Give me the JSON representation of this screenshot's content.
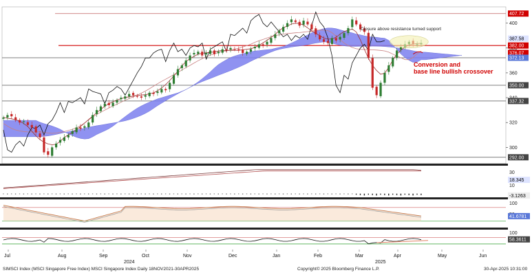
{
  "chart_data": {
    "type": "line",
    "main_panel": {
      "ylim": [
        288,
        412
      ],
      "yticks": [
        "400",
        "380",
        "360",
        "340",
        "320",
        "300"
      ],
      "price_tags": [
        {
          "text": "407.72",
          "value": 407.72,
          "color": "#d00000",
          "text_color": "#ffffff",
          "line": true,
          "line_color": "#c06060"
        },
        {
          "text": "387.58",
          "value": 387.58,
          "color": "#dde3ff",
          "text_color": "#000000",
          "line": false
        },
        {
          "text": "382.00",
          "value": 382.0,
          "color": "#d00000",
          "text_color": "#ffffff",
          "line": true,
          "line_color": "#d00000"
        },
        {
          "text": "376.07",
          "value": 376.07,
          "color": "#d00000",
          "text_color": "#ffffff",
          "line": false
        },
        {
          "text": "372.13",
          "value": 372.13,
          "color": "#5a78d8",
          "text_color": "#ffffff",
          "line": true,
          "line_color": "#555555"
        },
        {
          "text": "350.00",
          "value": 350.0,
          "color": "#444444",
          "text_color": "#ffffff",
          "line": true,
          "line_color": "#555555"
        },
        {
          "text": "337.32",
          "value": 337.32,
          "color": "#444444",
          "text_color": "#ffffff",
          "line": true,
          "line_color": "#555555"
        },
        {
          "text": "292.00",
          "value": 292.0,
          "color": "#444444",
          "text_color": "#ffffff",
          "line": true,
          "line_color": "#555555"
        }
      ],
      "annotations": [
        {
          "text": "Closure above resistance turned support",
          "style": "black"
        },
        {
          "text": "Conversion and",
          "style": "red"
        },
        {
          "text": "base line bullish crossover",
          "style": "red"
        }
      ],
      "close": [
        324,
        326,
        325,
        322,
        320,
        321,
        318,
        316,
        312,
        308,
        296,
        294,
        300,
        303,
        306,
        308,
        310,
        313,
        316,
        315,
        317,
        320,
        326,
        330,
        333,
        335,
        334,
        336,
        338,
        340,
        341,
        343,
        342,
        341,
        340,
        342,
        344,
        343,
        345,
        347,
        346,
        352,
        358,
        363,
        366,
        370,
        374,
        376,
        377,
        374,
        376,
        378,
        375,
        377,
        379,
        378,
        380,
        379,
        378,
        376,
        377,
        379,
        381,
        383,
        382,
        385,
        388,
        391,
        394,
        397,
        400,
        403,
        401,
        398,
        402,
        399,
        395,
        391,
        387,
        385,
        384,
        388,
        386,
        389,
        392,
        396,
        403,
        399,
        395,
        393,
        372,
        348,
        342,
        352,
        360,
        366,
        372,
        378,
        381,
        383,
        385,
        383,
        383,
        384
      ]
    },
    "panels": [
      {
        "ylim": [
          0,
          38
        ],
        "yticks": [
          "30",
          "20",
          "10"
        ],
        "tag": "18.345"
      },
      {
        "ylim": [
          -10,
          5
        ],
        "yticks": [],
        "tag": "-3.1263"
      },
      {
        "ylim": [
          0,
          110
        ],
        "yticks": [
          "100",
          "50"
        ],
        "tag": "41.6781"
      },
      {
        "ylim": [
          0,
          110
        ],
        "yticks": [
          "100",
          "50"
        ],
        "tag": "58.3611"
      }
    ],
    "x_months": [
      "Jul",
      "Aug",
      "Sep",
      "Oct",
      "Nov",
      "Dec",
      "Jan",
      "Feb",
      "Mar",
      "Apr",
      "May",
      "Jun"
    ],
    "x_years": [
      "2024",
      "2025"
    ]
  },
  "footer": {
    "left": "SIMSCI Index (MSCI Singapore Free Index) MSCI Singapore Index  Daily 18NOV2021-30APR2025",
    "center": "Copyright© 2025 Bloomberg Finance L.P.",
    "right": "30-Apr-2025 10:31:00"
  },
  "colors": {
    "cloud": "#7b7fef",
    "candle_up": "#2e7d32",
    "candle_down": "#c62828",
    "conversion": "#9c2f2f",
    "lagging": "#111111",
    "tag_red": "#d00000"
  }
}
